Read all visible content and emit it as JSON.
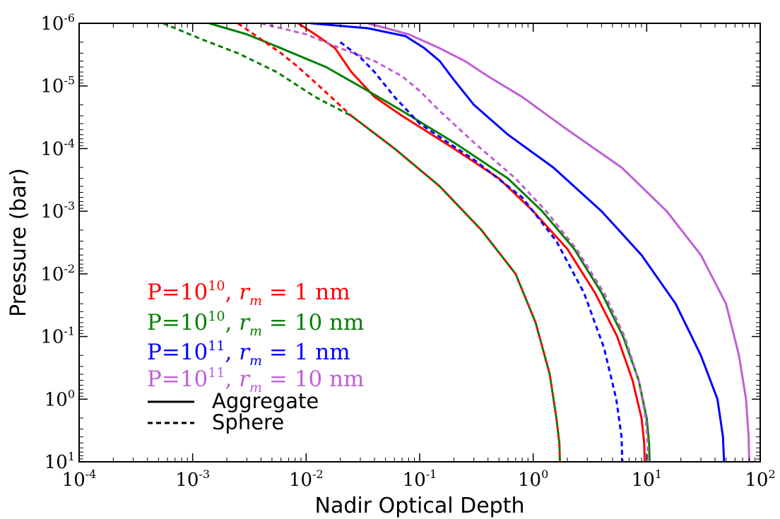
{
  "chart_data": {
    "type": "line",
    "title": "",
    "xlabel": "Nadir Optical Depth",
    "ylabel": "Pressure (bar)",
    "xscale": "log",
    "yscale": "log",
    "y_inverted": true,
    "xlim": [
      0.0001,
      100
    ],
    "ylim": [
      1e-06,
      10
    ],
    "xticks": [
      {
        "base": "10",
        "exp": "-4"
      },
      {
        "base": "10",
        "exp": "-3"
      },
      {
        "base": "10",
        "exp": "-2"
      },
      {
        "base": "10",
        "exp": "-1"
      },
      {
        "base": "10",
        "exp": "0"
      },
      {
        "base": "10",
        "exp": "1"
      },
      {
        "base": "10",
        "exp": "2"
      }
    ],
    "yticks": [
      {
        "base": "10",
        "exp": "-6"
      },
      {
        "base": "10",
        "exp": "-5"
      },
      {
        "base": "10",
        "exp": "-4"
      },
      {
        "base": "10",
        "exp": "-3"
      },
      {
        "base": "10",
        "exp": "-2"
      },
      {
        "base": "10",
        "exp": "-1"
      },
      {
        "base": "10",
        "exp": "0"
      },
      {
        "base": "10",
        "exp": "1"
      }
    ],
    "grid": false,
    "legend_position": "lower-left",
    "legend": {
      "series_entries": [
        {
          "pre": "P=10",
          "sup": "10",
          "mid": ", ",
          "r": "r",
          "sub": "m",
          "post": " = 1 nm",
          "color": "#ff0000"
        },
        {
          "pre": "P=10",
          "sup": "10",
          "mid": ", ",
          "r": "r",
          "sub": "m",
          "post": " = 10 nm",
          "color": "#008000"
        },
        {
          "pre": "P=10",
          "sup": "11",
          "mid": ", ",
          "r": "r",
          "sub": "m",
          "post": " = 1 nm",
          "color": "#0000ff"
        },
        {
          "pre": "P=10",
          "sup": "11",
          "mid": ", ",
          "r": "r",
          "sub": "m",
          "post": " = 10 nm",
          "color": "#bf5fd6"
        }
      ],
      "style_entries": [
        {
          "label": "Aggregate",
          "dash": "solid"
        },
        {
          "label": "Sphere",
          "dash": "dashed"
        }
      ]
    },
    "series": [
      {
        "color": "#ff0000",
        "style": "solid",
        "points": [
          [
            0.0085,
            1e-06
          ],
          [
            0.012,
            1.5e-06
          ],
          [
            0.018,
            2.5e-06
          ],
          [
            0.025,
            6e-06
          ],
          [
            0.04,
            1.5e-05
          ],
          [
            0.07,
            3e-05
          ],
          [
            0.2,
            0.0001
          ],
          [
            0.5,
            0.0003
          ],
          [
            1.0,
            0.001
          ],
          [
            2.0,
            0.004
          ],
          [
            3.5,
            0.02
          ],
          [
            5.5,
            0.1
          ],
          [
            7.5,
            0.5
          ],
          [
            9.0,
            2
          ],
          [
            9.5,
            5
          ],
          [
            9.6,
            10
          ]
        ]
      },
      {
        "color": "#008000",
        "style": "solid",
        "points": [
          [
            0.0014,
            1e-06
          ],
          [
            0.003,
            1.5e-06
          ],
          [
            0.006,
            2.5e-06
          ],
          [
            0.015,
            5e-06
          ],
          [
            0.035,
            1.2e-05
          ],
          [
            0.07,
            2.5e-05
          ],
          [
            0.2,
            8e-05
          ],
          [
            0.6,
            0.0003
          ],
          [
            1.2,
            0.001
          ],
          [
            2.3,
            0.004
          ],
          [
            4.0,
            0.02
          ],
          [
            6.2,
            0.1
          ],
          [
            8.5,
            0.5
          ],
          [
            10.0,
            2
          ],
          [
            10.5,
            5
          ],
          [
            10.6,
            10
          ]
        ]
      },
      {
        "color": "#0000ff",
        "style": "solid",
        "points": [
          [
            0.011,
            1e-06
          ],
          [
            0.035,
            1.2e-06
          ],
          [
            0.075,
            1.6e-06
          ],
          [
            0.11,
            2.5e-06
          ],
          [
            0.15,
            4e-06
          ],
          [
            0.2,
            8e-06
          ],
          [
            0.3,
            2e-05
          ],
          [
            0.6,
            6e-05
          ],
          [
            1.5,
            0.0002
          ],
          [
            4.0,
            0.001
          ],
          [
            9.0,
            0.005
          ],
          [
            18.0,
            0.03
          ],
          [
            30.0,
            0.2
          ],
          [
            42.0,
            1
          ],
          [
            47.0,
            4
          ],
          [
            48.0,
            10
          ]
        ]
      },
      {
        "color": "#bf5fd6",
        "style": "solid",
        "points": [
          [
            0.035,
            1e-06
          ],
          [
            0.08,
            1.5e-06
          ],
          [
            0.15,
            2.5e-06
          ],
          [
            0.25,
            4e-06
          ],
          [
            0.4,
            7e-06
          ],
          [
            0.8,
            1.5e-05
          ],
          [
            2.0,
            5e-05
          ],
          [
            6.0,
            0.0002
          ],
          [
            15.0,
            0.001
          ],
          [
            30.0,
            0.005
          ],
          [
            50.0,
            0.03
          ],
          [
            65.0,
            0.2
          ],
          [
            75.0,
            1
          ],
          [
            79.0,
            4
          ],
          [
            80.0,
            10
          ]
        ]
      },
      {
        "color": "#ff0000",
        "style": "dashed",
        "points": [
          [
            0.0025,
            1e-06
          ],
          [
            0.004,
            1.8e-06
          ],
          [
            0.006,
            3e-06
          ],
          [
            0.0085,
            5e-06
          ],
          [
            0.013,
            1e-05
          ],
          [
            0.025,
            3e-05
          ],
          [
            0.06,
            0.0001
          ],
          [
            0.15,
            0.0004
          ],
          [
            0.35,
            0.002
          ],
          [
            0.7,
            0.01
          ],
          [
            1.05,
            0.06
          ],
          [
            1.4,
            0.4
          ],
          [
            1.6,
            2
          ],
          [
            1.7,
            5
          ],
          [
            1.72,
            10
          ]
        ]
      },
      {
        "color": "#008000",
        "style": "dashed",
        "points": [
          [
            0.00055,
            1e-06
          ],
          [
            0.0012,
            1.8e-06
          ],
          [
            0.0025,
            3e-06
          ],
          [
            0.0055,
            6e-06
          ],
          [
            0.012,
            1.5e-05
          ],
          [
            0.025,
            3e-05
          ],
          [
            0.06,
            0.0001
          ],
          [
            0.15,
            0.0004
          ],
          [
            0.35,
            0.002
          ],
          [
            0.7,
            0.01
          ],
          [
            1.05,
            0.06
          ],
          [
            1.4,
            0.4
          ],
          [
            1.6,
            2
          ],
          [
            1.7,
            5
          ],
          [
            1.72,
            10
          ]
        ]
      },
      {
        "color": "#0000ff",
        "style": "dashed",
        "points": [
          [
            0.02,
            2e-06
          ],
          [
            0.03,
            3.5e-06
          ],
          [
            0.04,
            6e-06
          ],
          [
            0.06,
            1.5e-05
          ],
          [
            0.1,
            4e-05
          ],
          [
            0.3,
            0.00015
          ],
          [
            0.8,
            0.0006
          ],
          [
            1.6,
            0.003
          ],
          [
            2.8,
            0.02
          ],
          [
            4.2,
            0.15
          ],
          [
            5.4,
            1
          ],
          [
            6.0,
            4
          ],
          [
            6.1,
            10
          ]
        ]
      },
      {
        "color": "#bf5fd6",
        "style": "dashed",
        "points": [
          [
            0.004,
            1e-06
          ],
          [
            0.01,
            1.5e-06
          ],
          [
            0.02,
            2.5e-06
          ],
          [
            0.04,
            4e-06
          ],
          [
            0.07,
            7e-06
          ],
          [
            0.1,
            1.2e-05
          ],
          [
            0.15,
            2.5e-05
          ],
          [
            0.3,
            8e-05
          ],
          [
            0.7,
            0.0003
          ],
          [
            1.3,
            0.001
          ],
          [
            2.4,
            0.004
          ],
          [
            4.2,
            0.02
          ],
          [
            6.4,
            0.1
          ],
          [
            8.5,
            0.5
          ],
          [
            9.8,
            2
          ],
          [
            10.2,
            5
          ],
          [
            10.3,
            10
          ]
        ]
      }
    ]
  }
}
